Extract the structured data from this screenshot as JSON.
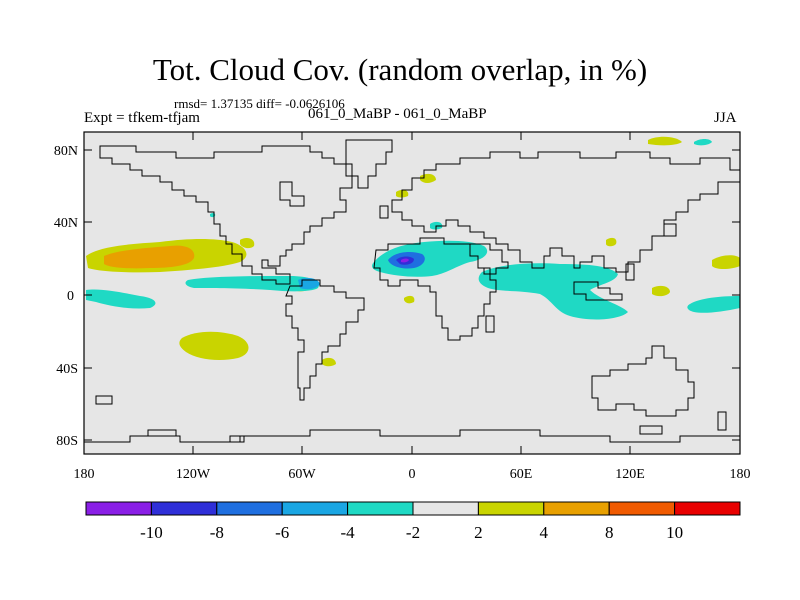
{
  "title": "Tot. Cloud Cov. (random overlap, in %)",
  "stats_text": "rmsd= 1.37135 diff= -0.0626106",
  "experiment_text": "Expt = tfkem-tfjam",
  "runs_text": "061_0_MaBP - 061_0_MaBP",
  "season": "JJA",
  "y_ticks": [
    "80N",
    "40N",
    "0",
    "40S",
    "80S"
  ],
  "x_ticks": [
    "180",
    "120W",
    "60W",
    "0",
    "60E",
    "120E",
    "180"
  ],
  "colorbar": {
    "colors": [
      "#8a1fe6",
      "#2f2fd8",
      "#1f6fe0",
      "#1aa6e3",
      "#1fd9c4",
      "#e6e6e6",
      "#c9d400",
      "#e8a000",
      "#f05a00",
      "#e80000"
    ],
    "labels": [
      "-10",
      "-8",
      "-6",
      "-4",
      "-2",
      "2",
      "4",
      "8",
      "10"
    ]
  },
  "map": {
    "background": "#e6e6e6",
    "coast_color": "#000000"
  }
}
